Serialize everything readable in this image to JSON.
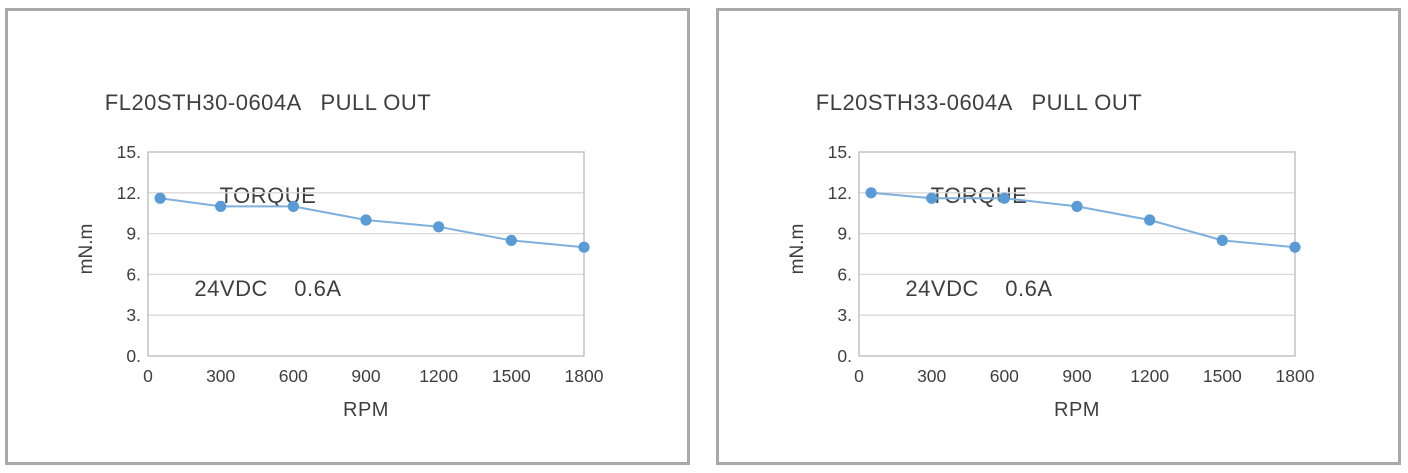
{
  "colors": {
    "panel_border": "#a9a9ad",
    "plot_border": "#bfbfbf",
    "gridline": "#d9d9d9",
    "text": "#3f3f3f",
    "marker_blue": "#5b9bd5",
    "line_blue": "#7fb0dd",
    "background": "#ffffff"
  },
  "chart_data": [
    {
      "type": "line",
      "title": "FL20STH30-0604A   PULL OUT TORQUE   24VDC   0.6A",
      "title_lines": [
        "FL20STH30-0604A   PULL OUT",
        "TORQUE",
        "24VDC    0.6A"
      ],
      "xlabel": "RPM",
      "ylabel": "mN.m",
      "x": [
        50,
        300,
        600,
        900,
        1200,
        1500,
        1800
      ],
      "y": [
        11.6,
        11.0,
        11.0,
        10.0,
        9.5,
        8.5,
        8.0
      ],
      "xlim": [
        0,
        1800
      ],
      "ylim": [
        0,
        15
      ],
      "x_tick_values": [
        0,
        300,
        600,
        900,
        1200,
        1500,
        1800
      ],
      "x_tick_labels": [
        "0",
        "300",
        "600",
        "900",
        "1200",
        "1500",
        "1800"
      ],
      "y_tick_values": [
        15,
        12,
        9,
        6,
        3,
        0
      ],
      "y_tick_labels": [
        "15.",
        "12.",
        "9.",
        "6.",
        "3.",
        "0."
      ],
      "grid": "horizontal",
      "legend": "none",
      "marker": "circle"
    },
    {
      "type": "line",
      "title": "FL20STH33-0604A   PULL OUT TORQUE   24VDC   0.6A",
      "title_lines": [
        "FL20STH33-0604A   PULL OUT",
        "TORQUE",
        "24VDC    0.6A"
      ],
      "xlabel": "RPM",
      "ylabel": "mN.m",
      "x": [
        50,
        300,
        600,
        900,
        1200,
        1500,
        1800
      ],
      "y": [
        12.0,
        11.6,
        11.6,
        11.0,
        10.0,
        8.5,
        8.0
      ],
      "xlim": [
        0,
        1800
      ],
      "ylim": [
        0,
        15
      ],
      "x_tick_values": [
        0,
        300,
        600,
        900,
        1200,
        1500,
        1800
      ],
      "x_tick_labels": [
        "0",
        "300",
        "600",
        "900",
        "1200",
        "1500",
        "1800"
      ],
      "y_tick_values": [
        15,
        12,
        9,
        6,
        3,
        0
      ],
      "y_tick_labels": [
        "15.",
        "12.",
        "9.",
        "6.",
        "3.",
        "0."
      ],
      "grid": "horizontal",
      "legend": "none",
      "marker": "circle"
    }
  ]
}
